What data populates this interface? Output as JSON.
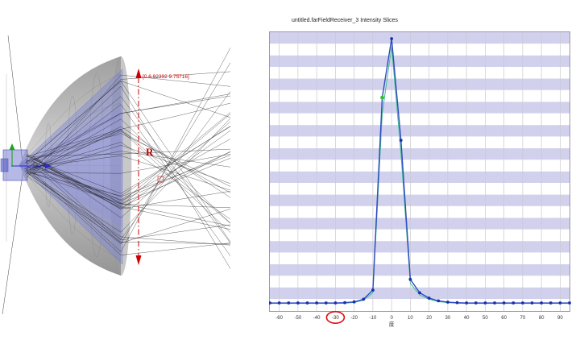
{
  "left_view": {
    "coordinate_annotation": "[0 6.92392 9.75716]",
    "receiver_label": "R",
    "colors": {
      "annotation_red": "#cc0000",
      "cone_gray": "#aaaaaa",
      "beam_blue": "#7d82dc",
      "axis_green": "#1fa41f",
      "axis_blue": "#2a2ad0",
      "ray_black": "#1b1b1b"
    }
  },
  "chart": {
    "title": "untitled.farFieldReceiver_3 Intensity Slices",
    "x_axis_label": "度",
    "circled_tick": "-30",
    "colors": {
      "stripe": "#ccccec",
      "grid_major": "#c9c9ce",
      "border": "#9a9aa8",
      "line_primary": "#2f4bbf",
      "line_secondary": "#3dbf8f",
      "point": "#1c2fae",
      "highlight_point": "#2fc22f",
      "annotation": "#dd1111",
      "tick_text": "#333333"
    }
  },
  "chart_data": {
    "type": "line",
    "title": "untitled.farFieldReceiver_3 Intensity Slices",
    "xlabel": "度",
    "ylabel": "",
    "xlim": [
      -65,
      95
    ],
    "ylim": [
      0,
      1.05
    ],
    "grid": "vertical-major, horizontal-stripes",
    "legend": "none",
    "x_ticks": [
      -60,
      -50,
      -40,
      -30,
      -20,
      -10,
      0,
      10,
      20,
      30,
      40,
      50,
      60,
      70,
      80,
      90
    ],
    "x": [
      -65,
      -60,
      -55,
      -50,
      -45,
      -40,
      -35,
      -30,
      -25,
      -20,
      -15,
      -10,
      -5,
      0,
      5,
      10,
      15,
      20,
      25,
      30,
      35,
      40,
      45,
      50,
      55,
      60,
      65,
      70,
      75,
      80,
      85,
      90,
      95
    ],
    "series": [
      {
        "name": "intensity-slice-secondary",
        "color": "#3dbf8f",
        "values": [
          0.01,
          0.01,
          0.01,
          0.01,
          0.01,
          0.01,
          0.01,
          0.01,
          0.011,
          0.014,
          0.022,
          0.05,
          0.72,
          0.97,
          0.57,
          0.085,
          0.042,
          0.026,
          0.017,
          0.013,
          0.011,
          0.01,
          0.01,
          0.01,
          0.01,
          0.01,
          0.01,
          0.01,
          0.01,
          0.01,
          0.01,
          0.01,
          0.01
        ]
      },
      {
        "name": "intensity-slice-primary",
        "color": "#2f4bbf",
        "values": [
          0.012,
          0.012,
          0.012,
          0.012,
          0.012,
          0.012,
          0.012,
          0.012,
          0.013,
          0.016,
          0.026,
          0.06,
          0.78,
          1.0,
          0.62,
          0.1,
          0.05,
          0.03,
          0.02,
          0.015,
          0.013,
          0.012,
          0.012,
          0.012,
          0.012,
          0.012,
          0.012,
          0.012,
          0.012,
          0.012,
          0.012,
          0.012,
          0.012
        ]
      }
    ],
    "highlight_point": {
      "x": -5,
      "series": "intensity-slice-primary"
    },
    "annotation": {
      "shape": "red-circle",
      "at_x_tick": -30,
      "color": "#dd1111"
    }
  }
}
